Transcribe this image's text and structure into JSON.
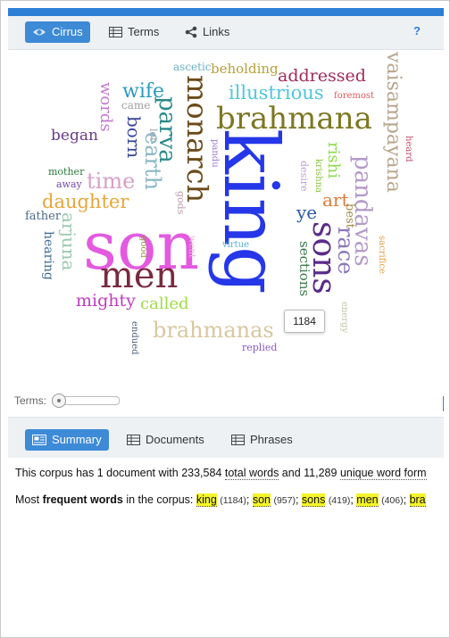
{
  "toolbar": {
    "tabs": [
      {
        "label": "Cirrus"
      },
      {
        "label": "Terms"
      },
      {
        "label": "Links"
      }
    ],
    "help": "?"
  },
  "cloud": {
    "tooltip": "1184",
    "words": [
      {
        "text": "king",
        "color": "#2537e8"
      },
      {
        "text": "son",
        "color": "#e35ae0"
      },
      {
        "text": "men",
        "color": "#7a2a40"
      },
      {
        "text": "sons",
        "color": "#5b2b8a"
      },
      {
        "text": "brahmana",
        "color": "#7d7822"
      },
      {
        "text": "monarch",
        "color": "#6b4a1a"
      },
      {
        "text": "vaisampayana",
        "color": "#b8a58d"
      },
      {
        "text": "pandavas",
        "color": "#b49ac9"
      },
      {
        "text": "race",
        "color": "#8a78b8"
      },
      {
        "text": "parva",
        "color": "#2a8a89"
      },
      {
        "text": "earth",
        "color": "#8bb8c8"
      },
      {
        "text": "illustrious",
        "color": "#4fc6e0"
      },
      {
        "text": "addressed",
        "color": "#a02a5a"
      },
      {
        "text": "wife",
        "color": "#2a9bbd"
      },
      {
        "text": "born",
        "color": "#3a4a9a"
      },
      {
        "text": "words",
        "color": "#c47ad0"
      },
      {
        "text": "time",
        "color": "#d8a0c9"
      },
      {
        "text": "daughter",
        "color": "#e9a638"
      },
      {
        "text": "arjuna",
        "color": "#9ac8b0"
      },
      {
        "text": "mighty",
        "color": "#c13bc2"
      },
      {
        "text": "called",
        "color": "#9fdc4a"
      },
      {
        "text": "brahmanas",
        "color": "#d8c8a0"
      },
      {
        "text": "rishi",
        "color": "#8cdc4a"
      },
      {
        "text": "art",
        "color": "#e07a3a"
      },
      {
        "text": "ye",
        "color": "#2a5aa6"
      },
      {
        "text": "best",
        "color": "#a08a4a"
      },
      {
        "text": "sections",
        "color": "#3a7a4a"
      },
      {
        "text": "began",
        "color": "#6a3a8a"
      },
      {
        "text": "father",
        "color": "#4a6a8a"
      },
      {
        "text": "hearing",
        "color": "#3a6a9a"
      },
      {
        "text": "beholding",
        "color": "#b8a03a"
      },
      {
        "text": "ascetic",
        "color": "#6ab0c8"
      },
      {
        "text": "came",
        "color": "#a0a0a0"
      },
      {
        "text": "let",
        "color": "#9aa0b0"
      },
      {
        "text": "mother",
        "color": "#2a7a3a"
      },
      {
        "text": "away",
        "color": "#7a4ab0"
      },
      {
        "text": "foremost",
        "color": "#e05a5a"
      },
      {
        "text": "heard",
        "color": "#c04a6a"
      },
      {
        "text": "desire",
        "color": "#c0a0d8"
      },
      {
        "text": "krishna",
        "color": "#8abf3a"
      },
      {
        "text": "gods",
        "color": "#c0a0b0"
      },
      {
        "text": "good",
        "color": "#8a9a3a"
      },
      {
        "text": "went",
        "color": "#e0b8d0"
      },
      {
        "text": "pandu",
        "color": "#9a7ad0"
      },
      {
        "text": "virtue",
        "color": "#5ab0d8"
      },
      {
        "text": "sacrifice",
        "color": "#e0a040"
      },
      {
        "text": "energy",
        "color": "#c0c0a0"
      },
      {
        "text": "replied",
        "color": "#8a5ac8"
      },
      {
        "text": "endued",
        "color": "#4a5a7a"
      }
    ]
  },
  "terms_control": {
    "label": "Terms:"
  },
  "panel": {
    "tabs": [
      {
        "label": "Summary"
      },
      {
        "label": "Documents"
      },
      {
        "label": "Phrases"
      }
    ]
  },
  "summary": {
    "line1_prefix": "This corpus has 1 document with ",
    "total_words": "233,584",
    "total_words_label": "total words",
    "line1_mid": " and ",
    "unique_words": "11,289",
    "unique_words_label": "unique word form",
    "line2_prefix": "Most ",
    "line2_bold": "frequent words",
    "line2_mid": " in the corpus: ",
    "frequent": [
      {
        "term": "king",
        "count": "(1184)"
      },
      {
        "term": "son",
        "count": "(957)"
      },
      {
        "term": "sons",
        "count": "(419)"
      },
      {
        "term": "men",
        "count": "(406)"
      },
      {
        "term": "bra",
        "count": ""
      }
    ]
  }
}
